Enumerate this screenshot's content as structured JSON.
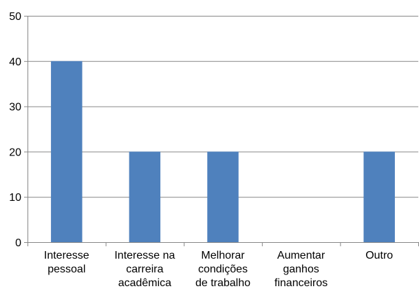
{
  "chart_data": {
    "type": "bar",
    "title": "",
    "xlabel": "",
    "ylabel": "",
    "categories": [
      [
        "Interesse",
        "pessoal"
      ],
      [
        "Interesse na",
        "carreira",
        "acadêmica"
      ],
      [
        "Melhorar",
        "condições",
        "de trabalho"
      ],
      [
        "Aumentar",
        "ganhos",
        "financeiros"
      ],
      [
        "Outro"
      ]
    ],
    "values": [
      40,
      20,
      20,
      0,
      20
    ],
    "ylim": [
      0,
      50
    ],
    "yticks": [
      0,
      10,
      20,
      30,
      40,
      50
    ],
    "grid": true,
    "legend": "none",
    "colors": {
      "bar": "#4f81bd",
      "grid": "#868686",
      "axis": "#868686"
    }
  }
}
